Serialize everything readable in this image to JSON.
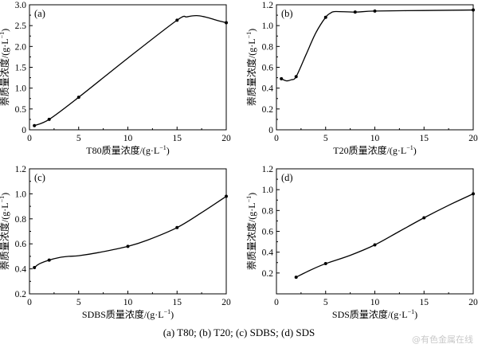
{
  "caption": "(a) T80; (b) T20; (c) SDBS; (d) SDS",
  "watermark": "@有色金属在线",
  "chart_data": [
    {
      "type": "line",
      "panel_label": "(a)",
      "xlabel_main": "T80质量浓度/(g·L",
      "xlabel_sup": "−1",
      "xlabel_tail": ")",
      "ylabel_main": "萘质量浓度/(g·L",
      "ylabel_sup": "−1",
      "ylabel_tail": ")",
      "xlim": [
        0,
        20
      ],
      "ylim": [
        0,
        3.0
      ],
      "xticks": [
        0,
        5,
        10,
        15,
        20
      ],
      "yticks": [
        0,
        0.5,
        1.0,
        1.5,
        2.0,
        2.5,
        3.0
      ],
      "ytick_labels": [
        "0",
        "0.5",
        "1.0",
        "1.5",
        "2.0",
        "2.5",
        "3.0"
      ],
      "points": [
        [
          0.5,
          0.1
        ],
        [
          2,
          0.25
        ],
        [
          5,
          0.78
        ],
        [
          15,
          2.63
        ],
        [
          20,
          2.57
        ]
      ],
      "curve": [
        [
          0.5,
          0.1
        ],
        [
          2,
          0.25
        ],
        [
          5,
          0.78
        ],
        [
          10,
          1.72
        ],
        [
          15,
          2.63
        ],
        [
          16,
          2.71
        ],
        [
          17,
          2.74
        ],
        [
          18,
          2.7
        ],
        [
          19,
          2.63
        ],
        [
          20,
          2.57
        ]
      ]
    },
    {
      "type": "line",
      "panel_label": "(b)",
      "xlabel_main": "T20质量浓度/(g·L",
      "xlabel_sup": "−1",
      "xlabel_tail": ")",
      "ylabel_main": "萘质量浓度/(g·L",
      "ylabel_sup": "−1",
      "ylabel_tail": ")",
      "xlim": [
        0,
        20
      ],
      "ylim": [
        0,
        1.2
      ],
      "xticks": [
        0,
        5,
        10,
        15,
        20
      ],
      "yticks": [
        0,
        0.2,
        0.4,
        0.6,
        0.8,
        1.0,
        1.2
      ],
      "ytick_labels": [
        "0",
        "0.2",
        "0.4",
        "0.6",
        "0.8",
        "1.0",
        "1.2"
      ],
      "points": [
        [
          0.5,
          0.49
        ],
        [
          2,
          0.51
        ],
        [
          5,
          1.08
        ],
        [
          8,
          1.13
        ],
        [
          10,
          1.14
        ],
        [
          20,
          1.15
        ]
      ],
      "curve": [
        [
          0.5,
          0.49
        ],
        [
          1,
          0.47
        ],
        [
          1.5,
          0.48
        ],
        [
          2,
          0.51
        ],
        [
          3,
          0.72
        ],
        [
          4,
          0.93
        ],
        [
          5,
          1.08
        ],
        [
          5.5,
          1.12
        ],
        [
          6,
          1.135
        ],
        [
          8,
          1.13
        ],
        [
          10,
          1.14
        ],
        [
          15,
          1.145
        ],
        [
          20,
          1.15
        ]
      ]
    },
    {
      "type": "line",
      "panel_label": "(c)",
      "xlabel_main": "SDBS质量浓度/(g·L",
      "xlabel_sup": "−1",
      "xlabel_tail": ")",
      "ylabel_main": "萘质量浓度/(g·L",
      "ylabel_sup": "−1",
      "ylabel_tail": ")",
      "xlim": [
        0,
        20
      ],
      "ylim": [
        0.2,
        1.2
      ],
      "xticks": [
        0,
        5,
        10,
        15,
        20
      ],
      "yticks": [
        0.2,
        0.4,
        0.6,
        0.8,
        1.0,
        1.2
      ],
      "ytick_labels": [
        "0.2",
        "0.4",
        "0.6",
        "0.8",
        "1.0",
        "1.2"
      ],
      "points": [
        [
          0.5,
          0.41
        ],
        [
          2,
          0.47
        ],
        [
          10,
          0.58
        ],
        [
          15,
          0.73
        ],
        [
          20,
          0.98
        ]
      ],
      "curve": [
        [
          0.5,
          0.41
        ],
        [
          1,
          0.44
        ],
        [
          2,
          0.47
        ],
        [
          3,
          0.49
        ],
        [
          4,
          0.5
        ],
        [
          5,
          0.505
        ],
        [
          7,
          0.53
        ],
        [
          10,
          0.58
        ],
        [
          12,
          0.63
        ],
        [
          15,
          0.73
        ],
        [
          17.5,
          0.85
        ],
        [
          20,
          0.98
        ]
      ]
    },
    {
      "type": "line",
      "panel_label": "(d)",
      "xlabel_main": "SDS质量浓度/(g·L",
      "xlabel_sup": "−1",
      "xlabel_tail": ")",
      "ylabel_main": "萘质量浓度/(g·L",
      "ylabel_sup": "−1",
      "ylabel_tail": ")",
      "xlim": [
        0,
        20
      ],
      "ylim": [
        0,
        1.2
      ],
      "xticks": [
        0,
        5,
        10,
        15,
        20
      ],
      "yticks": [
        0.2,
        0.4,
        0.6,
        0.8,
        1.0,
        1.2
      ],
      "ytick_labels": [
        "0.2",
        "0.4",
        "0.6",
        "0.8",
        "1.0",
        "1.2"
      ],
      "points": [
        [
          2,
          0.16
        ],
        [
          5,
          0.29
        ],
        [
          10,
          0.47
        ],
        [
          15,
          0.73
        ],
        [
          20,
          0.96
        ]
      ],
      "curve": [
        [
          2,
          0.16
        ],
        [
          3.5,
          0.23
        ],
        [
          5,
          0.29
        ],
        [
          7.5,
          0.37
        ],
        [
          10,
          0.47
        ],
        [
          12.5,
          0.6
        ],
        [
          15,
          0.73
        ],
        [
          17.5,
          0.85
        ],
        [
          20,
          0.96
        ]
      ]
    }
  ]
}
